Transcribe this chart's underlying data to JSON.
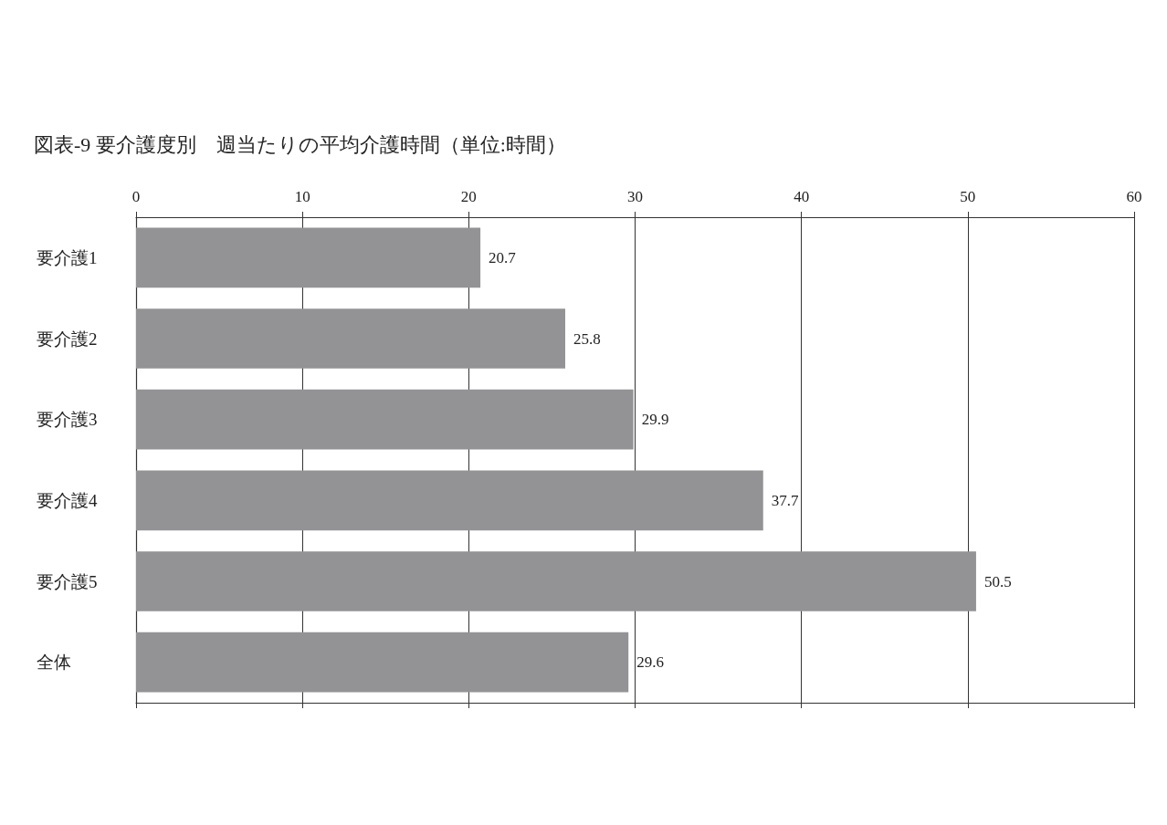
{
  "chart_data": {
    "type": "bar",
    "orientation": "horizontal",
    "title": "図表-9 要介護度別　週当たりの平均介護時間（単位:時間）",
    "categories": [
      "要介護1",
      "要介護2",
      "要介護3",
      "要介護4",
      "要介護5",
      "全体"
    ],
    "values": [
      20.7,
      25.8,
      29.9,
      37.7,
      50.5,
      29.6
    ],
    "color": "#939396",
    "xlim": [
      0,
      60
    ],
    "xticks": [
      0,
      10,
      20,
      30,
      40,
      50,
      60
    ],
    "grid": "x",
    "data_labels": true
  }
}
